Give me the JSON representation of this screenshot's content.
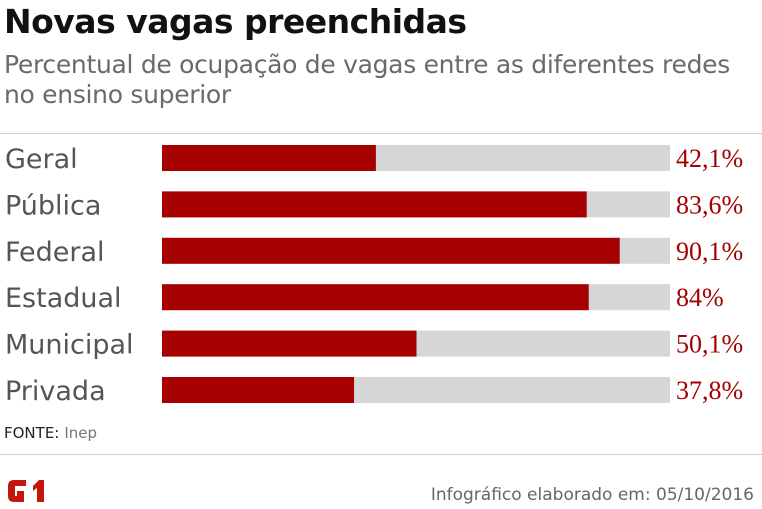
{
  "header": {
    "title": "Novas vagas preenchidas",
    "subtitle": "Percentual de ocupação de vagas entre as diferentes redes no ensino superior"
  },
  "chart_data": {
    "type": "bar",
    "orientation": "horizontal",
    "title": "Novas vagas preenchidas",
    "subtitle": "Percentual de ocupação de vagas entre as diferentes redes no ensino superior",
    "categories": [
      "Geral",
      "Pública",
      "Federal",
      "Estadual",
      "Municipal",
      "Privada"
    ],
    "values": [
      42.1,
      83.6,
      90.1,
      84,
      50.1,
      37.8
    ],
    "value_labels": [
      "42,1%",
      "83,6%",
      "90,1%",
      "84%",
      "50,1%",
      "37,8%"
    ],
    "unit": "%",
    "xlim": [
      0,
      100
    ],
    "grid": false,
    "legend": "none",
    "colors": {
      "bar": "#a60000",
      "track": "#d6d6d6",
      "value_text": "#a30000"
    }
  },
  "footer": {
    "source_label": "FONTE:",
    "source_value": "Inep",
    "logo_text": "G1",
    "credit": "Infográfico elaborado em: 05/10/2016",
    "logo_color": "#c4170c"
  }
}
